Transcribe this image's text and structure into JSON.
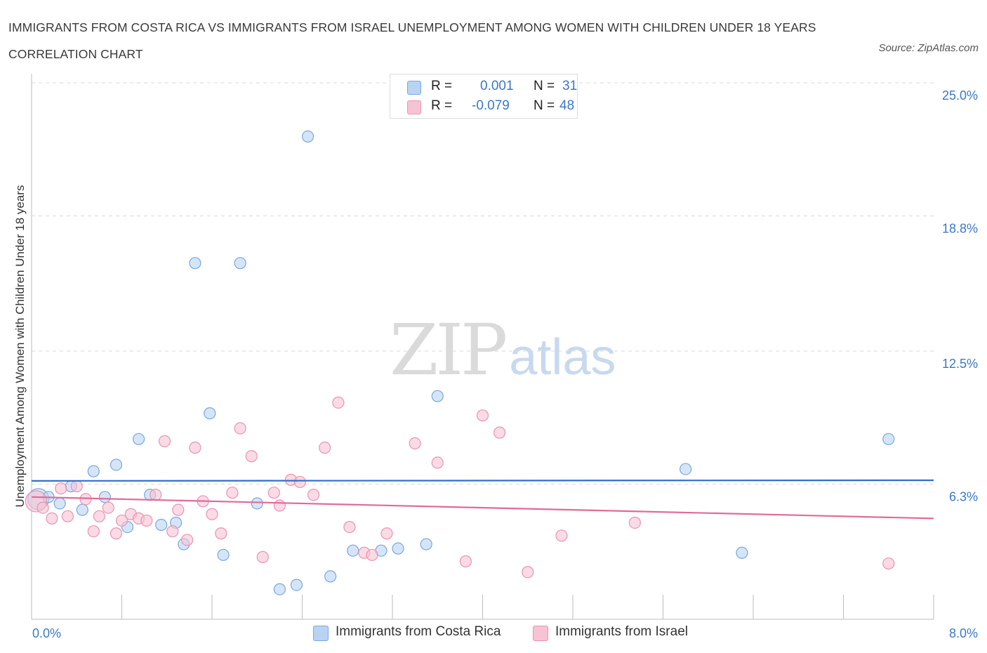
{
  "header": {
    "title": "IMMIGRANTS FROM COSTA RICA VS IMMIGRANTS FROM ISRAEL UNEMPLOYMENT AMONG WOMEN WITH CHILDREN UNDER 18 YEARS CORRELATION CHART",
    "source": "Source: ZipAtlas.com"
  },
  "watermark": {
    "zip": "ZIP",
    "atlas": "atlas"
  },
  "colors": {
    "blue_fill": "#b9d3f4",
    "blue_stroke": "#7aa7de",
    "blue_line": "#2e6fcf",
    "pink_fill": "#f6c3d4",
    "pink_stroke": "#e993b1",
    "pink_line": "#e06b98",
    "tick_text": "#3b78c8",
    "grid": "#d9d9d9"
  },
  "legend": {
    "rows": [
      {
        "r_label": "R =",
        "r_value": "0.001",
        "n_label": "N =",
        "n_value": "31"
      },
      {
        "r_label": "R =",
        "r_value": "-0.079",
        "n_label": "N =",
        "n_value": "48"
      }
    ]
  },
  "chart_data": {
    "type": "scatter",
    "title": "IMMIGRANTS FROM COSTA RICA VS IMMIGRANTS FROM ISRAEL UNEMPLOYMENT AMONG WOMEN WITH CHILDREN UNDER 18 YEARS CORRELATION CHART",
    "xlabel": "",
    "ylabel": "Unemployment Among Women with Children Under 18 years",
    "xlim": [
      0,
      8
    ],
    "ylim": [
      0,
      25
    ],
    "x_tick_labels": [
      "0.0%",
      "8.0%"
    ],
    "y_ticks": [
      {
        "value": 6.3,
        "label": "6.3%"
      },
      {
        "value": 12.5,
        "label": "12.5%"
      },
      {
        "value": 18.8,
        "label": "18.8%"
      },
      {
        "value": 25.0,
        "label": "25.0%"
      }
    ],
    "grid": true,
    "series": [
      {
        "name": "Immigrants from Costa Rica",
        "color": "#b9d3f4",
        "trend": {
          "y_start": 6.45,
          "y_end": 6.48
        },
        "points": [
          [
            0.06,
            5.6
          ],
          [
            0.15,
            5.7
          ],
          [
            0.25,
            5.4
          ],
          [
            0.35,
            6.2
          ],
          [
            0.45,
            5.1
          ],
          [
            0.55,
            6.9
          ],
          [
            0.65,
            5.7
          ],
          [
            0.75,
            7.2
          ],
          [
            0.85,
            4.3
          ],
          [
            0.95,
            8.4
          ],
          [
            1.05,
            5.8
          ],
          [
            1.15,
            4.4
          ],
          [
            1.28,
            4.5
          ],
          [
            1.35,
            3.5
          ],
          [
            1.45,
            16.6
          ],
          [
            1.58,
            9.6
          ],
          [
            1.7,
            3.0
          ],
          [
            1.85,
            16.6
          ],
          [
            2.0,
            5.4
          ],
          [
            2.2,
            1.4
          ],
          [
            2.35,
            1.6
          ],
          [
            2.45,
            22.5
          ],
          [
            2.65,
            2.0
          ],
          [
            2.85,
            3.2
          ],
          [
            3.1,
            3.2
          ],
          [
            3.25,
            3.3
          ],
          [
            3.5,
            3.5
          ],
          [
            3.6,
            10.4
          ],
          [
            5.8,
            7.0
          ],
          [
            6.3,
            3.1
          ],
          [
            7.6,
            8.4
          ]
        ]
      },
      {
        "name": "Immigrants from Israel",
        "color": "#f6c3d4",
        "trend": {
          "y_start": 5.7,
          "y_end": 4.7
        },
        "points": [
          [
            0.04,
            5.5
          ],
          [
            0.1,
            5.2
          ],
          [
            0.18,
            4.7
          ],
          [
            0.26,
            6.1
          ],
          [
            0.32,
            4.8
          ],
          [
            0.4,
            6.2
          ],
          [
            0.48,
            5.6
          ],
          [
            0.55,
            4.1
          ],
          [
            0.6,
            4.8
          ],
          [
            0.68,
            5.2
          ],
          [
            0.75,
            4.0
          ],
          [
            0.8,
            4.6
          ],
          [
            0.88,
            4.9
          ],
          [
            0.95,
            4.7
          ],
          [
            1.02,
            4.6
          ],
          [
            1.1,
            5.8
          ],
          [
            1.18,
            8.3
          ],
          [
            1.25,
            4.1
          ],
          [
            1.3,
            5.1
          ],
          [
            1.38,
            3.7
          ],
          [
            1.45,
            8.0
          ],
          [
            1.52,
            5.5
          ],
          [
            1.6,
            4.9
          ],
          [
            1.68,
            4.0
          ],
          [
            1.78,
            5.9
          ],
          [
            1.85,
            8.9
          ],
          [
            1.95,
            7.6
          ],
          [
            2.05,
            2.9
          ],
          [
            2.15,
            5.9
          ],
          [
            2.2,
            5.3
          ],
          [
            2.3,
            6.5
          ],
          [
            2.38,
            6.4
          ],
          [
            2.5,
            5.8
          ],
          [
            2.6,
            8.0
          ],
          [
            2.72,
            10.1
          ],
          [
            2.82,
            4.3
          ],
          [
            2.95,
            3.1
          ],
          [
            3.02,
            3.0
          ],
          [
            3.15,
            4.0
          ],
          [
            3.4,
            8.2
          ],
          [
            3.6,
            7.3
          ],
          [
            3.85,
            2.7
          ],
          [
            4.0,
            9.5
          ],
          [
            4.15,
            8.7
          ],
          [
            4.4,
            2.2
          ],
          [
            4.7,
            3.9
          ],
          [
            5.35,
            4.5
          ],
          [
            7.6,
            2.6
          ]
        ]
      }
    ]
  }
}
